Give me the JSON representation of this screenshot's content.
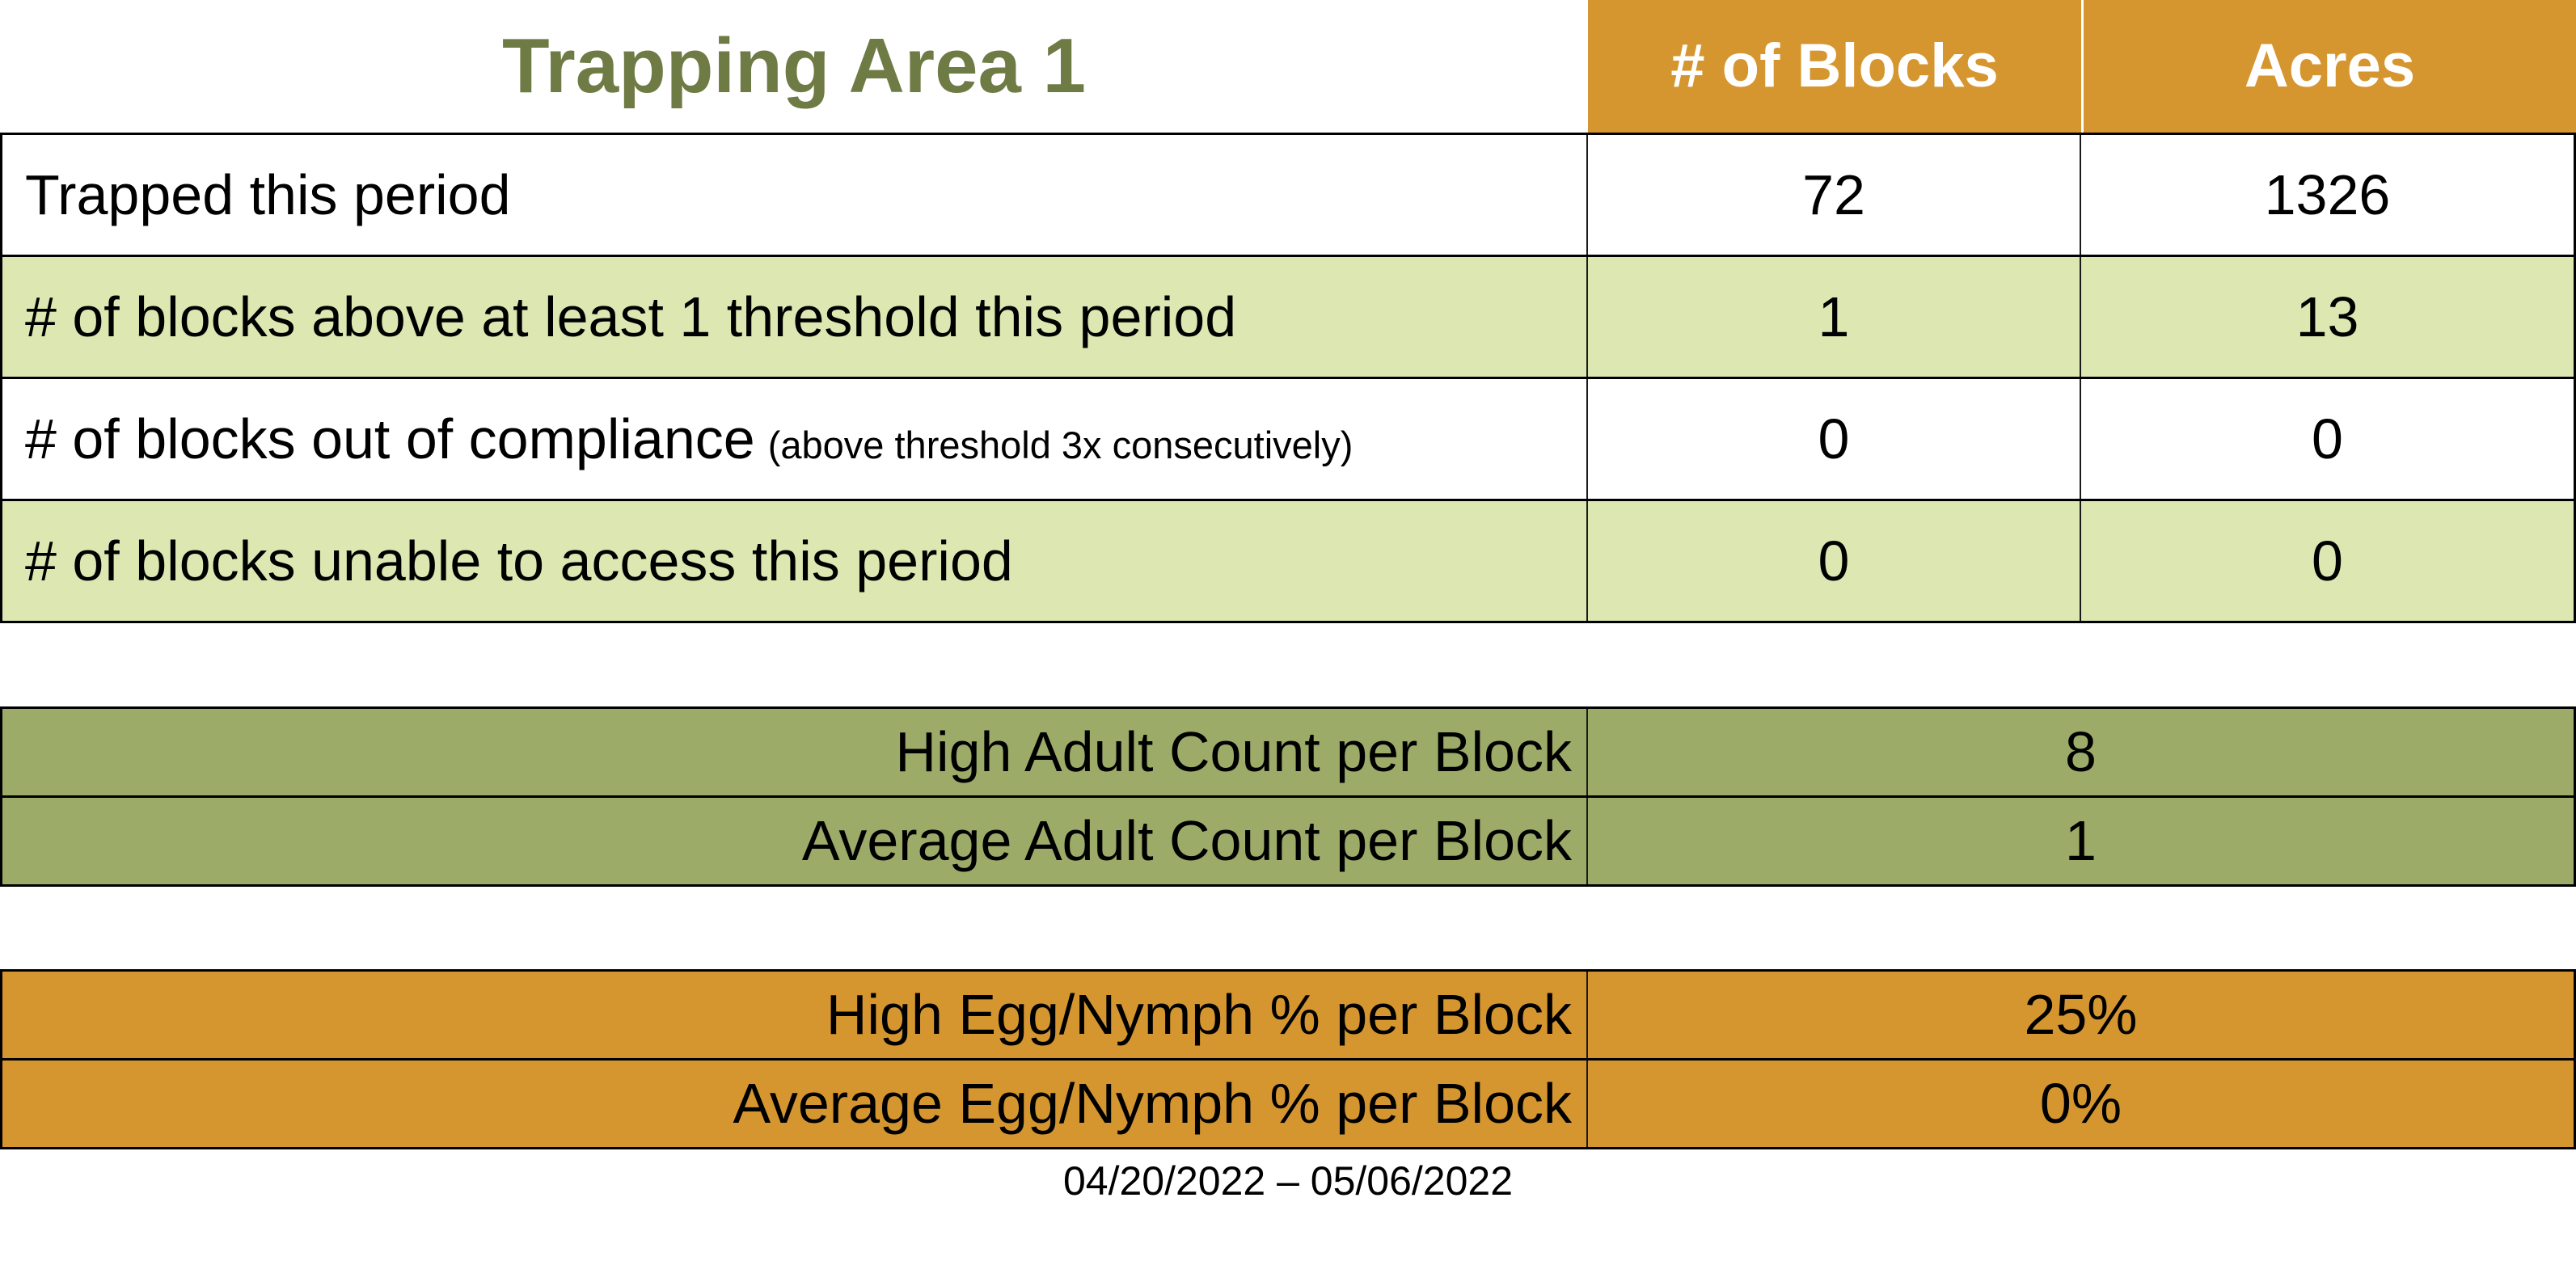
{
  "title": "Trapping Area 1",
  "colors": {
    "header_orange": "#D6962F",
    "row_light_green": "#DCE7B1",
    "section_olive": "#9DAB68",
    "title_green": "#6F7B44"
  },
  "main_table": {
    "column_headers": [
      "# of Blocks",
      "Acres"
    ],
    "rows": [
      {
        "label": "Trapped this period",
        "note": "",
        "blocks": "72",
        "acres": "1326"
      },
      {
        "label": "# of blocks above at least 1 threshold this period",
        "note": "",
        "blocks": "1",
        "acres": "13"
      },
      {
        "label": "# of blocks out of compliance",
        "note": "(above threshold 3x consecutively)",
        "blocks": "0",
        "acres": "0"
      },
      {
        "label": "# of blocks unable to access this period",
        "note": "",
        "blocks": "0",
        "acres": "0"
      }
    ]
  },
  "adult_section": {
    "rows": [
      {
        "label": "High Adult Count per Block",
        "value": "8"
      },
      {
        "label": "Average Adult Count per Block",
        "value": "1"
      }
    ]
  },
  "egg_section": {
    "rows": [
      {
        "label": "High Egg/Nymph % per Block",
        "value": "25%"
      },
      {
        "label": "Average Egg/Nymph % per Block",
        "value": "0%"
      }
    ]
  },
  "date_range": "04/20/2022 – 05/06/2022"
}
